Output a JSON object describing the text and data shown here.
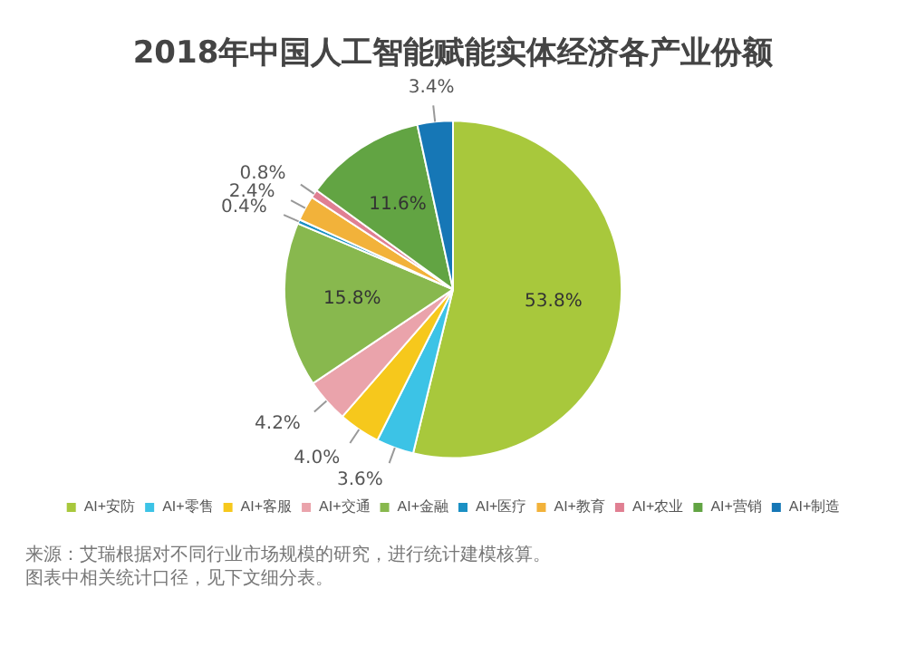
{
  "chart_data": {
    "type": "pie",
    "title": "2018年中国人工智能赋能实体经济各产业份额",
    "categories": [
      "AI+安防",
      "AI+零售",
      "AI+客服",
      "AI+交通",
      "AI+金融",
      "AI+医疗",
      "AI+教育",
      "AI+农业",
      "AI+营销",
      "AI+制造"
    ],
    "values": [
      53.8,
      3.6,
      4.0,
      4.2,
      15.8,
      0.4,
      2.4,
      0.8,
      11.6,
      3.4
    ],
    "value_labels": [
      "53.8%",
      "3.6%",
      "4.0%",
      "4.2%",
      "15.8%",
      "0.4%",
      "2.4%",
      "0.8%",
      "11.6%",
      "3.4%"
    ],
    "colors": [
      "#a8c83c",
      "#3cc3e6",
      "#f6c81c",
      "#eaa3ab",
      "#88b84e",
      "#1a90c4",
      "#f2b23a",
      "#e07f92",
      "#62a443",
      "#1677b6"
    ],
    "legend": "bottom",
    "annotations": [
      "来源：艾瑞根据对不同行业市场规模的研究，进行统计建模核算。",
      "图表中相关统计口径，见下文细分表。"
    ]
  }
}
